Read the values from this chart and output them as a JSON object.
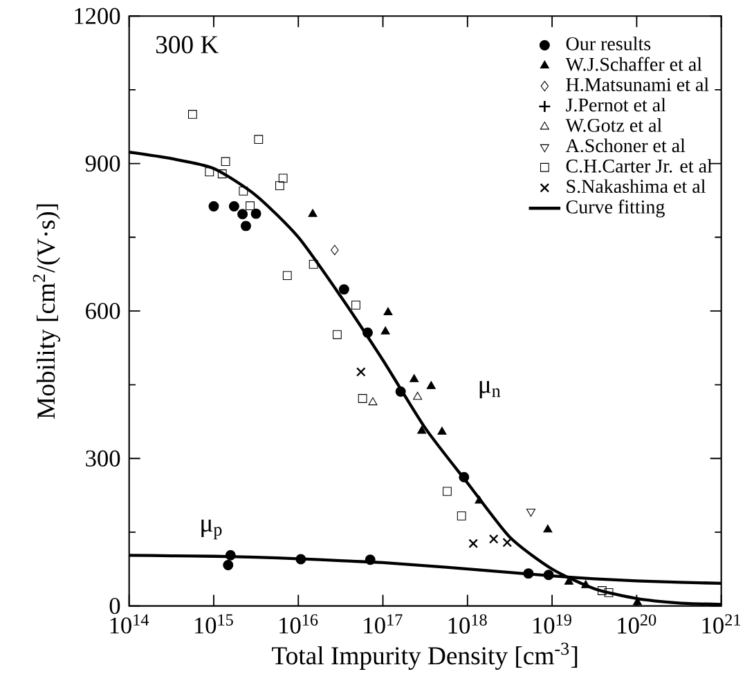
{
  "chart_data": {
    "type": "scatter",
    "xlabel": "Total Impurity Density [cm$^{-3}$]",
    "ylabel": "Mobility [cm$^{2}$/(V·s)]",
    "log": "x",
    "xlim": [
      100000000000000.0,
      1e+21
    ],
    "ylim": [
      0,
      1200
    ],
    "xticks": [
      {
        "value": 100000000000000.0,
        "label": "10$^{14}$"
      },
      {
        "value": 1000000000000000.0,
        "label": "10$^{15}$"
      },
      {
        "value": 1e+16,
        "label": "10$^{16}$"
      },
      {
        "value": 1e+17,
        "label": "10$^{17}$"
      },
      {
        "value": 1e+18,
        "label": "10$^{18}$"
      },
      {
        "value": 1e+19,
        "label": "10$^{19}$"
      },
      {
        "value": 1e+20,
        "label": "10$^{20}$"
      },
      {
        "value": 1e+21,
        "label": "10$^{21}$"
      }
    ],
    "yticks": [
      0,
      300,
      600,
      900,
      1200
    ],
    "grid": false,
    "legend": "top right",
    "annotations": [
      "300 K",
      "μ$_{n}$",
      "μ$_{p}$"
    ],
    "series": [
      {
        "name": "Our results",
        "color": "#000000",
        "marker": "circle",
        "x": [
          1000000000000000.0,
          1740000000000000.0,
          2190000000000000.0,
          2400000000000000.0,
          3160000000000000.0,
          3.47e+16,
          6.6e+16,
          1.62e+17,
          9.1e+17,
          1580000000000000.0,
          1480000000000000.0,
          1.07e+16,
          7.08e+16,
          5.25e+18,
          9.1e+18
        ],
        "values": [
          813,
          813,
          797,
          773,
          798,
          644,
          556,
          436,
          262,
          103,
          83,
          95,
          94,
          66,
          63
        ]
      },
      {
        "name": "W.J.Schaffer et al",
        "color": "#000000",
        "marker": "triangle",
        "x": [
          1.48e+16,
          1.15e+17,
          1.07e+17,
          2.34e+17,
          3.72e+17,
          2.88e+17,
          5e+17,
          1.38e+18,
          8.9e+18,
          1.58e+19,
          2.5e+19,
          1.02e+20
        ],
        "values": [
          797,
          597,
          558,
          461,
          447,
          356,
          354,
          214,
          155,
          49,
          42,
          7
        ]
      },
      {
        "name": "H.Matsunami et al",
        "color": "#000000",
        "marker": "diamond open",
        "x": [
          2.69e+16
        ],
        "values": [
          724
        ]
      },
      {
        "name": "J.Pernot et al",
        "color": "#000000",
        "marker": "plus"
      },
      {
        "name": "W.Gotz et al",
        "color": "#000000",
        "marker": "triangle open",
        "x": [
          7.6e+16,
          2.57e+17
        ],
        "values": [
          414,
          425
        ]
      },
      {
        "name": "A.Schoner et al",
        "color": "#000000",
        "marker": "triangle down open",
        "x": [
          5.62e+18
        ],
        "values": [
          192
        ]
      },
      {
        "name": "C.H.Carter Jr. et al",
        "color": "#000000",
        "marker": "square open",
        "x": [
          562000000000000.0,
          3390000000000000.0,
          1380000000000000.0,
          890000000000000.0,
          1260000000000000.0,
          2240000000000000.0,
          2690000000000000.0,
          6600000000000000.0,
          6030000000000000.0,
          1.51e+16,
          7400000000000000.0,
          4.79e+16,
          2.88e+16,
          5.75e+16,
          5.75e+17,
          8.5e+17,
          3.9e+19,
          4.68e+19
        ],
        "values": [
          1000,
          949,
          904,
          883,
          879,
          844,
          814,
          870,
          855,
          695,
          672,
          612,
          552,
          422,
          233,
          183,
          31,
          27
        ]
      },
      {
        "name": "S.Nakashima et al",
        "color": "#000000",
        "marker": "cross",
        "x": [
          5.5e+16,
          1.17e+18,
          2.04e+18,
          2.95e+18
        ],
        "values": [
          476,
          127,
          136,
          129
        ]
      },
      {
        "name": "Curve fitting",
        "type": "line",
        "color": "#000000",
        "marker": "none",
        "x": [
          100000000000000.0,
          316000000000000.0,
          1000000000000000.0,
          3160000000000000.0,
          1e+16,
          3.16e+16,
          1e+17,
          3.16e+17,
          1e+18,
          3.16e+18,
          1e+19,
          3.16e+19,
          1e+20,
          3.16e+20,
          1e+21
        ],
        "values": [
          923,
          910,
          890,
          835,
          750,
          630,
          500,
          362,
          250,
          140,
          75,
          35,
          15,
          6,
          3
        ]
      },
      {
        "type": "line",
        "color": "#000000",
        "marker": "none",
        "x": [
          100000000000000.0,
          316000000000000.0,
          1000000000000000.0,
          3160000000000000.0,
          1e+16,
          3.16e+16,
          1e+17,
          3.16e+17,
          1e+18,
          3.16e+18,
          1e+19,
          3.16e+19,
          1e+20,
          3.16e+20,
          1e+21
        ],
        "values": [
          103,
          102,
          101,
          99,
          96,
          92,
          88,
          82,
          75,
          68,
          61,
          55,
          51,
          48,
          46
        ]
      }
    ]
  }
}
